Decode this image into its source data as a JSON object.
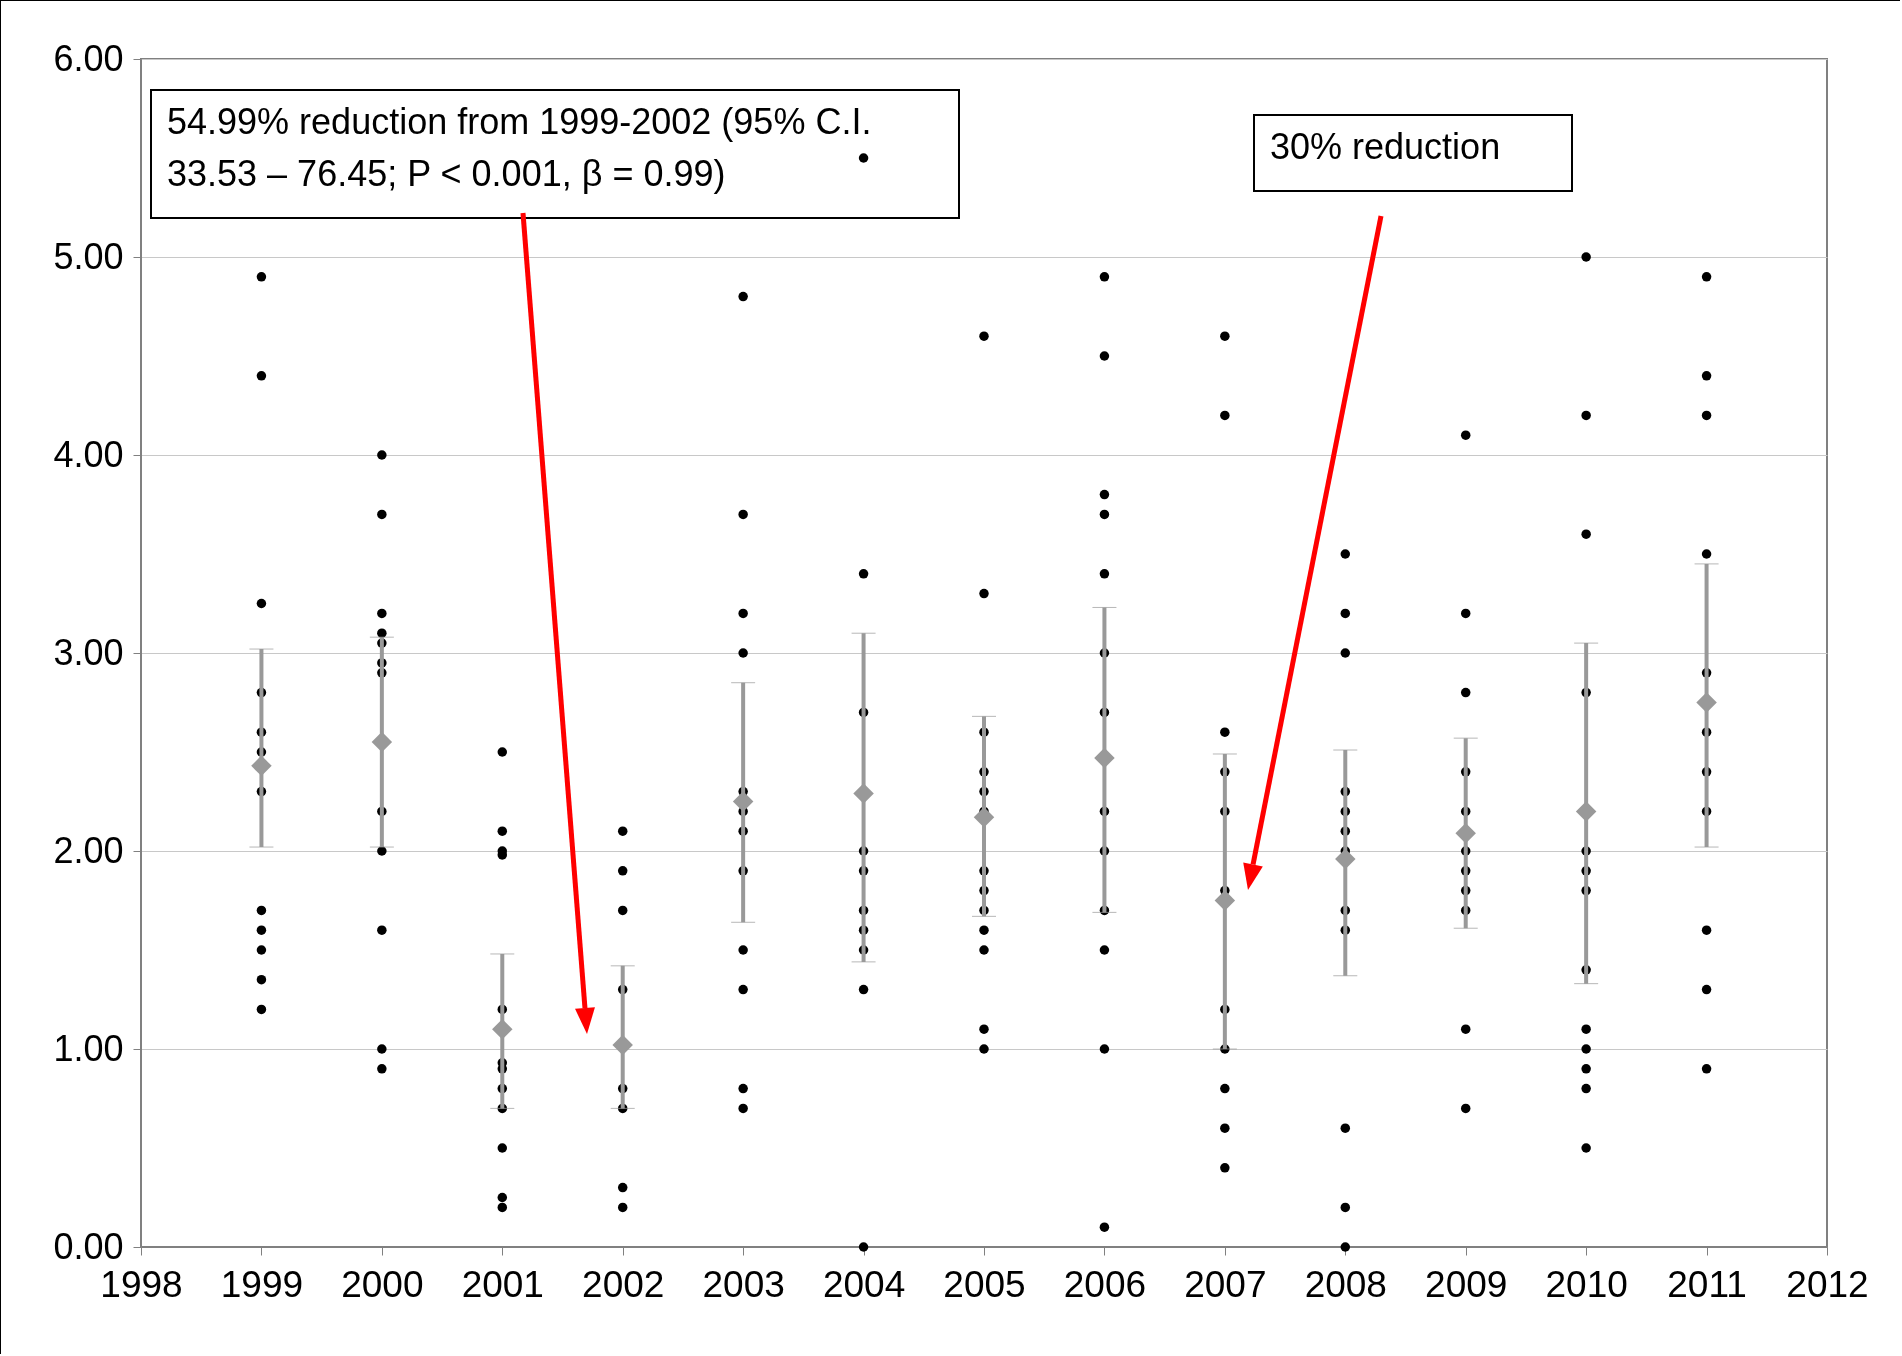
{
  "chart_data": {
    "type": "scatter",
    "xlim": [
      1998,
      2012
    ],
    "xticks": [
      1998,
      1999,
      2000,
      2001,
      2002,
      2003,
      2004,
      2005,
      2006,
      2007,
      2008,
      2009,
      2010,
      2011,
      2012
    ],
    "ylim": [
      0,
      6
    ],
    "yticks": [
      {
        "value": 0,
        "label": "0.00"
      },
      {
        "value": 1,
        "label": "1.00"
      },
      {
        "value": 2,
        "label": "2.00"
      },
      {
        "value": 3,
        "label": "3.00"
      },
      {
        "value": 4,
        "label": "4.00"
      },
      {
        "value": 5,
        "label": "5.00"
      },
      {
        "value": 6,
        "label": "6.00"
      }
    ],
    "grid": "y",
    "annotations": [
      "54.99% reduction from 1999-2002 (95% C.I. 33.53 – 76.45; P < 0.001, β = 0.99)",
      "30% reduction"
    ],
    "series": [
      {
        "marker": "circle",
        "color": "#000000",
        "x": [
          1999,
          1999,
          1999,
          1999,
          1999,
          1999,
          1999,
          1999,
          1999,
          1999,
          1999,
          1999,
          2000,
          2000,
          2000,
          2000,
          2000,
          2000,
          2000,
          2000,
          2000,
          2000,
          2000,
          2000,
          2001,
          2001,
          2001,
          2001,
          2001,
          2001,
          2001,
          2001,
          2001,
          2001,
          2001,
          2001,
          2002,
          2002,
          2002,
          2002,
          2002,
          2002,
          2002,
          2002,
          2003,
          2003,
          2003,
          2003,
          2003,
          2003,
          2003,
          2003,
          2003,
          2003,
          2003,
          2003,
          2004,
          2004,
          2004,
          2004,
          2004,
          2004,
          2004,
          2004,
          2004,
          2004,
          2005,
          2005,
          2005,
          2005,
          2005,
          2005,
          2005,
          2005,
          2005,
          2005,
          2005,
          2005,
          2005,
          2006,
          2006,
          2006,
          2006,
          2006,
          2006,
          2006,
          2006,
          2006,
          2006,
          2006,
          2006,
          2006,
          2007,
          2007,
          2007,
          2007,
          2007,
          2007,
          2007,
          2007,
          2007,
          2007,
          2007,
          2008,
          2008,
          2008,
          2008,
          2008,
          2008,
          2008,
          2008,
          2008,
          2008,
          2008,
          2008,
          2009,
          2009,
          2009,
          2009,
          2009,
          2009,
          2009,
          2009,
          2009,
          2009,
          2009,
          2010,
          2010,
          2010,
          2010,
          2010,
          2010,
          2010,
          2010,
          2010,
          2010,
          2010,
          2010,
          2010,
          2011,
          2011,
          2011,
          2011,
          2011,
          2011,
          2011,
          2011,
          2011,
          2011,
          2011
        ],
        "values": [
          4.9,
          4.4,
          3.25,
          2.8,
          2.6,
          2.5,
          2.3,
          1.7,
          1.6,
          1.5,
          1.35,
          1.2,
          4.0,
          3.7,
          3.2,
          3.1,
          3.05,
          2.95,
          2.9,
          2.2,
          2.0,
          1.6,
          1.0,
          0.9,
          2.5,
          2.1,
          2.0,
          1.98,
          1.2,
          0.93,
          0.9,
          0.8,
          0.7,
          0.5,
          0.25,
          0.2,
          2.1,
          1.9,
          1.7,
          1.3,
          0.8,
          0.7,
          0.3,
          0.2,
          4.8,
          3.7,
          3.2,
          3.0,
          2.3,
          2.2,
          2.1,
          1.9,
          1.5,
          1.3,
          0.8,
          0.7,
          5.5,
          3.4,
          2.7,
          2.0,
          1.9,
          1.7,
          1.6,
          1.5,
          1.3,
          0.0,
          4.6,
          3.3,
          2.6,
          2.4,
          2.3,
          2.2,
          1.9,
          1.8,
          1.7,
          1.6,
          1.5,
          1.1,
          1.0,
          4.9,
          4.5,
          3.8,
          3.7,
          3.4,
          3.0,
          2.7,
          2.2,
          2.0,
          1.7,
          1.5,
          1.0,
          0.1,
          4.6,
          4.2,
          2.6,
          2.4,
          2.2,
          1.8,
          1.2,
          1.0,
          0.8,
          0.6,
          0.4,
          3.5,
          3.2,
          3.0,
          2.3,
          2.2,
          2.1,
          2.0,
          1.7,
          1.6,
          0.6,
          0.2,
          0.0,
          4.1,
          3.2,
          2.8,
          2.4,
          2.2,
          2.0,
          1.9,
          1.8,
          1.7,
          1.1,
          0.7,
          5.0,
          4.2,
          3.6,
          2.8,
          2.0,
          1.9,
          1.8,
          1.4,
          1.1,
          1.0,
          0.9,
          0.8,
          0.5,
          4.9,
          4.4,
          4.2,
          3.5,
          2.9,
          2.6,
          2.4,
          2.2,
          1.6,
          1.3,
          0.9
        ]
      },
      {
        "marker": "diamond",
        "color": "#999999",
        "x": [
          1999,
          2000,
          2001,
          2002,
          2003,
          2004,
          2005,
          2006,
          2007,
          2008,
          2009,
          2010,
          2011
        ],
        "values": [
          2.43,
          2.55,
          1.1,
          1.02,
          2.25,
          2.29,
          2.17,
          2.47,
          1.75,
          1.96,
          2.09,
          2.2,
          2.75
        ],
        "errors": [
          [
            2.02,
            3.02
          ],
          [
            2.02,
            3.08
          ],
          [
            0.7,
            1.48
          ],
          [
            0.7,
            1.42
          ],
          [
            1.64,
            2.85
          ],
          [
            1.44,
            3.1
          ],
          [
            1.67,
            2.68
          ],
          [
            1.69,
            3.23
          ],
          [
            1.0,
            2.49
          ],
          [
            1.37,
            2.51
          ],
          [
            1.61,
            2.57
          ],
          [
            1.33,
            3.05
          ],
          [
            2.02,
            3.45
          ]
        ]
      }
    ]
  }
}
